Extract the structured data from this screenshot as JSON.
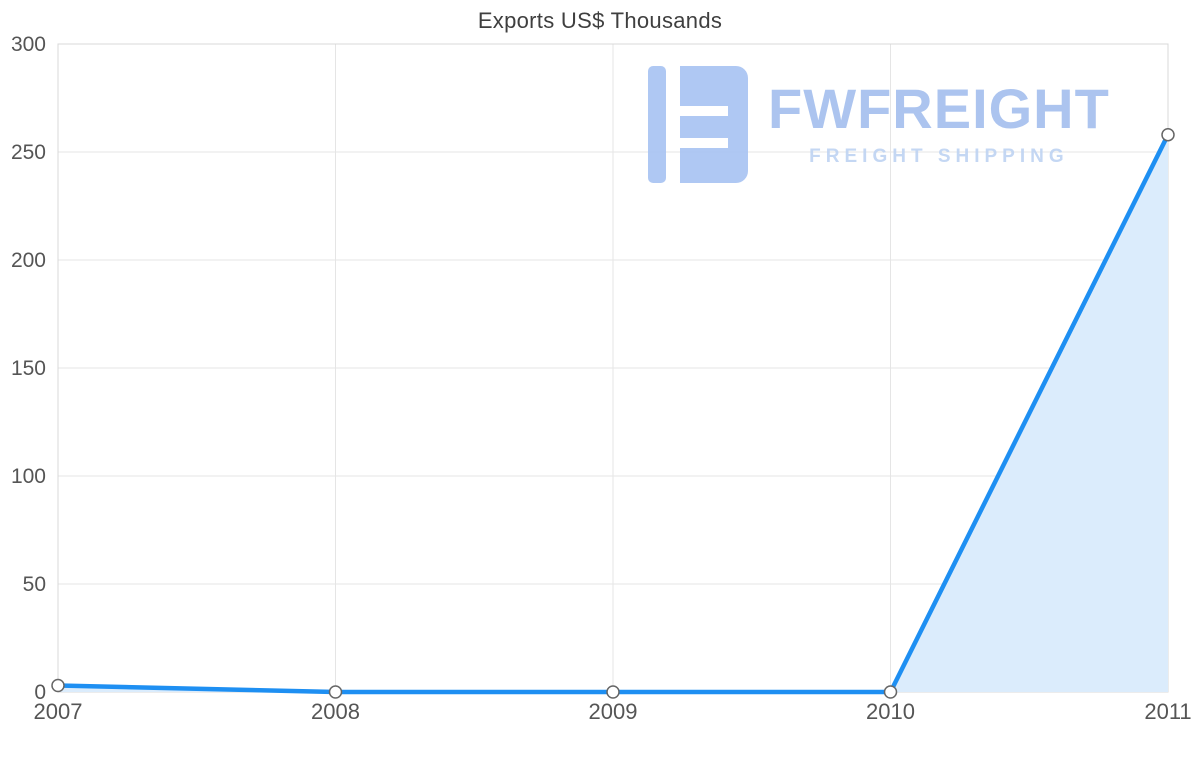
{
  "chart_data": {
    "type": "area",
    "title": "Exports US$ Thousands",
    "x": [
      "2007",
      "2008",
      "2009",
      "2010",
      "2011"
    ],
    "values": [
      3,
      0,
      0,
      0,
      258
    ],
    "xlabel": "",
    "ylabel": "",
    "ylim": [
      0,
      300
    ],
    "yticks": [
      0,
      50,
      100,
      150,
      200,
      250,
      300
    ],
    "grid": true,
    "legend": false,
    "colors": {
      "line": "#1e8ff2",
      "fill": "#dbecfc",
      "grid": "#e5e5e5",
      "border": "#d8d8d8",
      "tick_text": "#555555",
      "point_fill": "#ffffff",
      "point_stroke": "#666666"
    }
  },
  "watermark": {
    "brand": "FWFREIGHT",
    "tagline": "FREIGHT SHIPPING",
    "icon_color": "#a9c4f2"
  }
}
